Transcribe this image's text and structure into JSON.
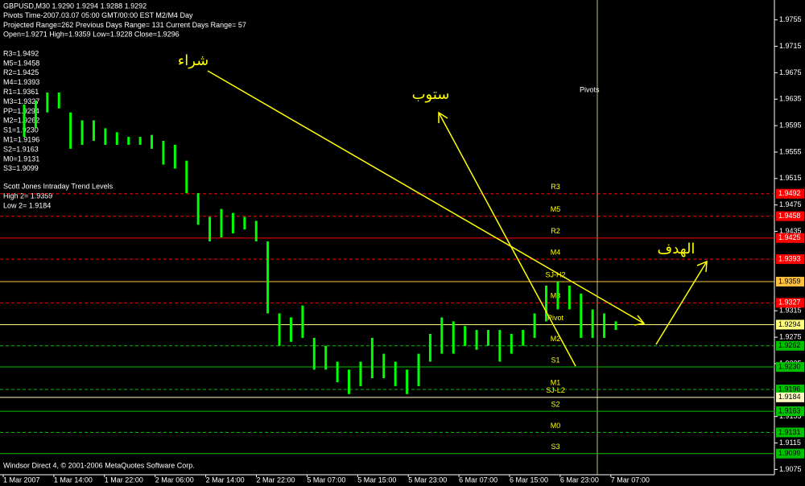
{
  "chart_data": {
    "type": "hilo",
    "header": [
      "GBPUSD,M30  1.9290 1.9294 1.9288 1.9292",
      "Pivots Time-2007.03.07 05:00 GMT/00:00 EST M2/M4 Day",
      "Projected Range=262 Previous Days Range= 131 Current Days Range= 57",
      "Open=1.9271 High=1.9359 Low=1.9228 Close=1.9296"
    ],
    "pivot_list": [
      "R3=1.9492",
      "M5=1.9458",
      "R2=1.9425",
      "M4=1.9393",
      "R1=1.9361",
      "M3=1.9327",
      "PP=1.9294",
      "M2=1.9262",
      "S1=1.9230",
      "M1=1.9196",
      "S2=1.9163",
      "M0=1.9131",
      "S3=1.9099"
    ],
    "sj_lines": [
      "Scott Jones Intraday Trend Levels",
      "High 2= 1.9359",
      "Low 2= 1.9184"
    ],
    "footer": "Windsor Direct 4, © 2001-2006 MetaQuotes Software Corp.",
    "pivots_label": "Pivots",
    "annotations": [
      "شراء",
      "ستوب",
      "الهدف"
    ],
    "x_labels": [
      "1 Mar 2007",
      "1 Mar 14:00",
      "1 Mar 22:00",
      "2 Mar 06:00",
      "2 Mar 14:00",
      "2 Mar 22:00",
      "5 Mar 07:00",
      "5 Mar 15:00",
      "5 Mar 23:00",
      "6 Mar 07:00",
      "6 Mar 15:00",
      "6 Mar 23:00",
      "7 Mar 07:00"
    ],
    "color": "#00ff00",
    "high": [
      1.9627,
      1.9633,
      1.9645,
      1.9645,
      1.9615,
      1.9603,
      1.9603,
      1.9591,
      1.9585,
      1.9578,
      1.9578,
      1.9581,
      1.9572,
      1.9566,
      1.9542,
      1.9493,
      1.9457,
      1.9469,
      1.9463,
      1.9457,
      1.9451,
      1.942,
      1.9311,
      1.9305,
      1.9323,
      1.9274,
      1.9262,
      1.9238,
      1.9226,
      1.9238,
      1.9274,
      1.925,
      1.9238,
      1.9226,
      1.925,
      1.928,
      1.9305,
      1.9299,
      1.9292,
      1.9286,
      1.9286,
      1.9286,
      1.928,
      1.9286,
      1.9311,
      1.9353,
      1.9359,
      1.9353,
      1.9341,
      1.9317,
      1.9311,
      1.9299
    ],
    "low": [
      1.9578,
      1.9591,
      1.9615,
      1.9621,
      1.956,
      1.9566,
      1.9572,
      1.9566,
      1.9566,
      1.9566,
      1.9566,
      1.956,
      1.9536,
      1.953,
      1.9493,
      1.9445,
      1.942,
      1.9426,
      1.9432,
      1.9438,
      1.942,
      1.9311,
      1.9262,
      1.9268,
      1.9274,
      1.9226,
      1.9226,
      1.9207,
      1.9189,
      1.9201,
      1.9213,
      1.9213,
      1.9201,
      1.9189,
      1.9201,
      1.9238,
      1.925,
      1.925,
      1.9262,
      1.9256,
      1.9262,
      1.9238,
      1.925,
      1.9262,
      1.9274,
      1.9299,
      1.9317,
      1.9317,
      1.9274,
      1.9274,
      1.9274,
      1.9286
    ],
    "ylim": [
      1.9067,
      1.9785
    ],
    "yticks": [
      1.9075,
      1.9115,
      1.9155,
      1.9235,
      1.9275,
      1.9315,
      1.9435,
      1.9475,
      1.9515,
      1.9555,
      1.9595,
      1.9635,
      1.9675,
      1.9715,
      1.9755
    ],
    "levels": [
      {
        "name": "R3",
        "value": 1.9492,
        "value_label": "1.9492",
        "color": "#ff0000",
        "style": "dashed"
      },
      {
        "name": "M5",
        "value": 1.9458,
        "value_label": "1.9458",
        "color": "#ff0000",
        "style": "dashed"
      },
      {
        "name": "R2",
        "value": 1.9425,
        "value_label": "1.9425",
        "color": "#ff0000",
        "style": "solid"
      },
      {
        "name": "M4",
        "value": 1.9393,
        "value_label": "1.9393",
        "color": "#ff0000",
        "style": "dashed"
      },
      {
        "name": "SJ-H2",
        "value": 1.9359,
        "value_label": "1.9359",
        "color": "#ffc040",
        "style": "solid"
      },
      {
        "name": "M3",
        "value": 1.9327,
        "value_label": "1.9327",
        "color": "#ff0000",
        "style": "dashed"
      },
      {
        "name": "Pivot",
        "value": 1.9294,
        "value_label": "1.9294",
        "color": "#ffff80",
        "style": "solid"
      },
      {
        "name": "M2",
        "value": 1.9262,
        "value_label": "1.9262",
        "color": "#00c000",
        "style": "dashed"
      },
      {
        "name": "S1",
        "value": 1.923,
        "value_label": "1.9230",
        "color": "#00c000",
        "style": "solid"
      },
      {
        "name": "M1",
        "value": 1.9196,
        "value_label": "1.9196",
        "color": "#00c000",
        "style": "dashed"
      },
      {
        "name": "SJ-L2",
        "value": 1.9184,
        "value_label": "1.9184",
        "color": "#fff8c0",
        "style": "solid"
      },
      {
        "name": "S2",
        "value": 1.9163,
        "value_label": "1.9163",
        "color": "#00c000",
        "style": "solid"
      },
      {
        "name": "M0",
        "value": 1.9131,
        "value_label": "1.9131",
        "color": "#00c000",
        "style": "dashed"
      },
      {
        "name": "S3",
        "value": 1.9099,
        "value_label": "1.9099",
        "color": "#00c000",
        "style": "solid"
      }
    ]
  }
}
